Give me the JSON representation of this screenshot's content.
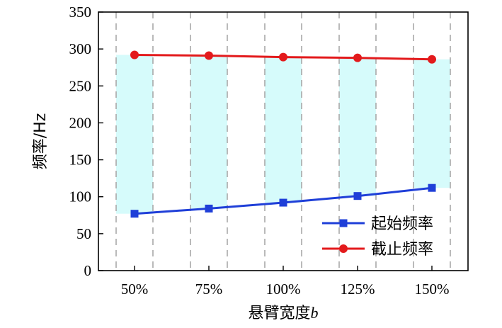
{
  "chart_data": {
    "type": "line",
    "categories": [
      "50%",
      "75%",
      "100%",
      "125%",
      "150%"
    ],
    "xlabel": "悬臂宽度b",
    "ylabel": "频率/Hz",
    "ylim": [
      0,
      350
    ],
    "yticks": [
      0,
      50,
      100,
      150,
      200,
      250,
      300,
      350
    ],
    "grid": "vertical-dashed",
    "legend": "bottom-right",
    "band_fill": "#d6fbfb",
    "series": [
      {
        "name": "起始频率",
        "marker": "square",
        "color": "#1f3fd8",
        "values": [
          77,
          84,
          92,
          101,
          112
        ]
      },
      {
        "name": "截止频率",
        "marker": "circle",
        "color": "#e31a1c",
        "values": [
          292,
          291,
          289,
          288,
          286
        ]
      }
    ]
  }
}
